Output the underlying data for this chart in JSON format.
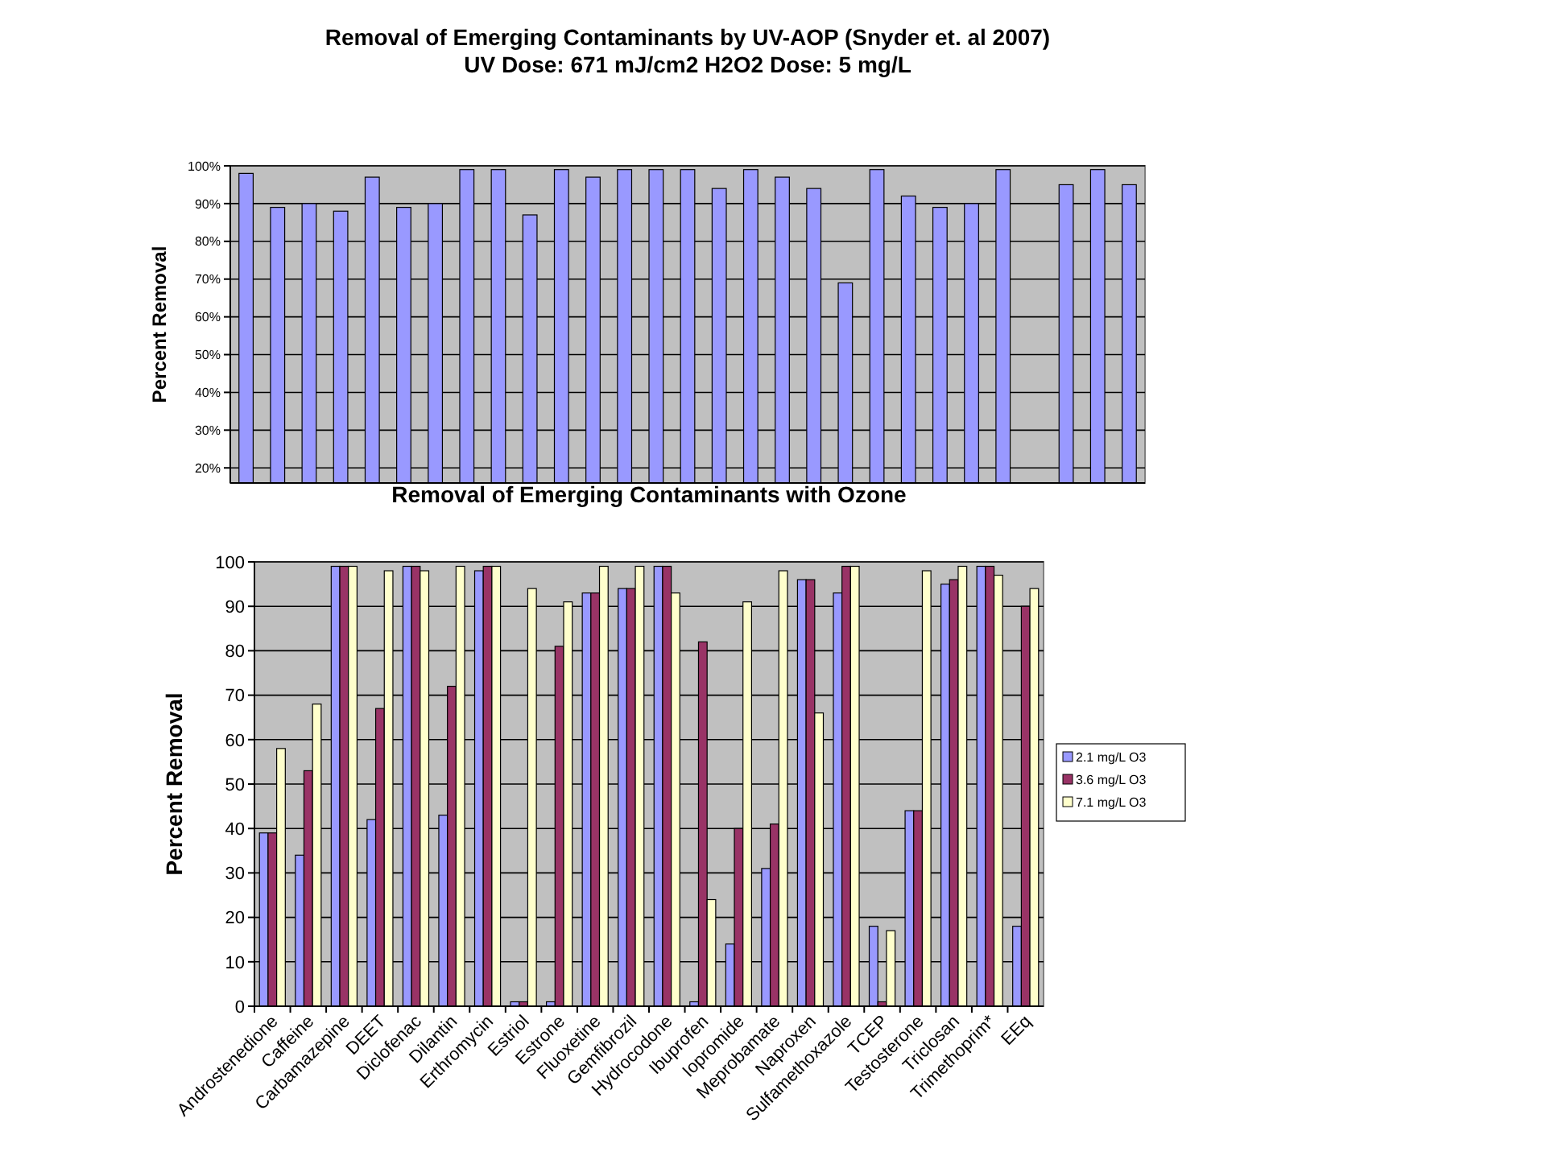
{
  "chart_data": [
    {
      "type": "bar",
      "title": "Removal of Emerging Contaminants by UV-AOP (Snyder et. al 2007)",
      "subtitle": "UV Dose: 671 mJ/cm2  H2O2 Dose: 5 mg/L",
      "ylabel": "Percent Removal",
      "categories": [
        null,
        null,
        null,
        null,
        null,
        null,
        null,
        null,
        null,
        null,
        null,
        null,
        null,
        null,
        null,
        null,
        null,
        null,
        null,
        null,
        null,
        null,
        null,
        null,
        null,
        null,
        null,
        null,
        null
      ],
      "series": [
        {
          "color": "#9999ff",
          "values": [
            98,
            89,
            90,
            88,
            97,
            89,
            90,
            99,
            99,
            87,
            99,
            97,
            99,
            99,
            99,
            94,
            99,
            97,
            94,
            69,
            99,
            92,
            89,
            90,
            99,
            null,
            95,
            99,
            95
          ]
        }
      ],
      "ylim": [
        16,
        100
      ],
      "yticks": [
        {
          "value": 20,
          "label": "20%"
        },
        {
          "value": 30,
          "label": "30%"
        },
        {
          "value": 40,
          "label": "40%"
        },
        {
          "value": 50,
          "label": "50%"
        },
        {
          "value": 60,
          "label": "60%"
        },
        {
          "value": 70,
          "label": "70%"
        },
        {
          "value": 80,
          "label": "80%"
        },
        {
          "value": 90,
          "label": "90%"
        },
        {
          "value": 100,
          "label": "100%"
        }
      ],
      "grid": "y",
      "tick_labels": "y",
      "legend": false
    },
    {
      "type": "bar",
      "title": "Removal of Emerging Contaminants with Ozone",
      "ylabel": "Percent Removal",
      "categories": [
        "Androstenedione",
        "Caffeine",
        "Carbamazepine",
        "DEET",
        "Diclofenac",
        "Dilantin",
        "Erthromycin",
        "Estriol",
        "Estrone",
        "Fluoxetine",
        "Gemfibrozil",
        "Hydrocodone",
        "Ibuprofen",
        "Iopromide",
        "Meprobamate",
        "Naproxen",
        "Sulfamethoxazole",
        "TCEP",
        "Testosterone",
        "Triclosan",
        "Trimethoprim*",
        "EEq"
      ],
      "series": [
        {
          "name": "2.1 mg/L O3",
          "color": "#9999ff",
          "values": [
            39,
            34,
            99,
            42,
            99,
            43,
            98,
            1,
            1,
            93,
            94,
            99,
            1,
            14,
            31,
            96,
            93,
            18,
            44,
            95,
            99,
            18
          ]
        },
        {
          "name": "3.6 mg/L O3",
          "color": "#993366",
          "values": [
            39,
            53,
            99,
            67,
            99,
            72,
            99,
            1,
            81,
            93,
            94,
            99,
            82,
            40,
            41,
            96,
            99,
            1,
            44,
            96,
            99,
            90
          ]
        },
        {
          "name": "7.1 mg/L O3",
          "color": "#ffffcc",
          "values": [
            58,
            68,
            99,
            98,
            98,
            99,
            99,
            94,
            91,
            99,
            99,
            93,
            24,
            91,
            98,
            66,
            99,
            17,
            98,
            99,
            97,
            94
          ]
        }
      ],
      "ylim": [
        0,
        100
      ],
      "yticks": [
        0,
        10,
        20,
        30,
        40,
        50,
        60,
        70,
        80,
        90,
        100
      ],
      "grid": "y",
      "legend": "right"
    }
  ]
}
